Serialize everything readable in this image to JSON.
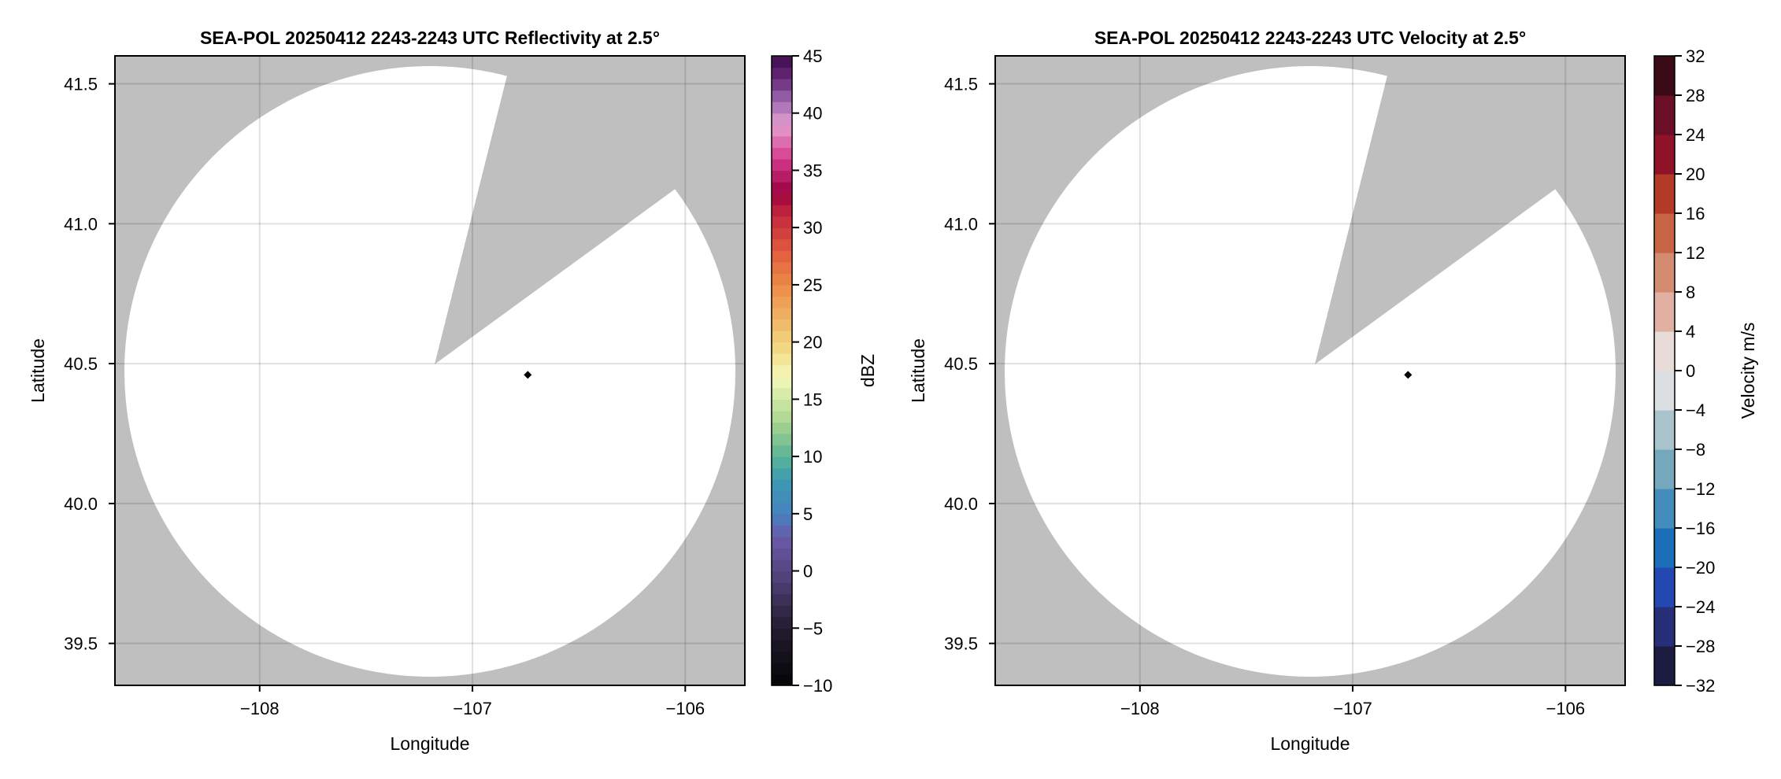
{
  "chart_data": [
    {
      "type": "heatmap",
      "title": "SEA-POL 20250412 2243-2243 UTC Reflectivity at 2.5°",
      "xlabel": "Longitude",
      "ylabel": "Latitude",
      "xlim": [
        -108.68,
        -105.72
      ],
      "ylim": [
        39.35,
        41.6
      ],
      "xticks": [
        "−108",
        "−107",
        "−106"
      ],
      "xtick_values": [
        -108,
        -107,
        -106
      ],
      "yticks": [
        "39.5",
        "40.0",
        "40.5",
        "41.0",
        "41.5"
      ],
      "ytick_values": [
        39.5,
        40.0,
        40.5,
        41.0,
        41.5
      ],
      "grid": true,
      "no_data_color": "#bfbfbf",
      "coverage_color": "#ffffff",
      "radar_marker": {
        "lon": -106.74,
        "lat": 40.46
      },
      "colorbar": {
        "label": "dBZ",
        "range": [
          -10,
          45
        ],
        "step": 1,
        "ticks": [
          "−10",
          "−5",
          "0",
          "5",
          "10",
          "15",
          "20",
          "25",
          "30",
          "35",
          "40",
          "45"
        ],
        "tick_values": [
          -10,
          -5,
          0,
          5,
          10,
          15,
          20,
          25,
          30,
          35,
          40,
          45
        ],
        "color_anchors": [
          [
            -10,
            "#050505"
          ],
          [
            -5,
            "#221c30"
          ],
          [
            0,
            "#574682"
          ],
          [
            3,
            "#6a5aa8"
          ],
          [
            5,
            "#4682c0"
          ],
          [
            8,
            "#3b9ab0"
          ],
          [
            10,
            "#5ab496"
          ],
          [
            13,
            "#a8d490"
          ],
          [
            17,
            "#f5f8b8"
          ],
          [
            20,
            "#f2d27a"
          ],
          [
            25,
            "#ec8a48"
          ],
          [
            28,
            "#e25a3e"
          ],
          [
            32,
            "#b8183c"
          ],
          [
            33,
            "#9a0040"
          ],
          [
            36,
            "#d43a8c"
          ],
          [
            39,
            "#e4a0d0"
          ],
          [
            41,
            "#9e6ab0"
          ],
          [
            43,
            "#6a2a7a"
          ],
          [
            45,
            "#3c0a4c"
          ]
        ]
      }
    },
    {
      "type": "heatmap",
      "title": "SEA-POL 20250412 2243-2243 UTC Velocity at 2.5°",
      "xlabel": "Longitude",
      "ylabel": "Latitude",
      "xlim": [
        -108.68,
        -105.72
      ],
      "ylim": [
        39.35,
        41.6
      ],
      "xticks": [
        "−108",
        "−107",
        "−106"
      ],
      "xtick_values": [
        -108,
        -107,
        -106
      ],
      "yticks": [
        "39.5",
        "40.0",
        "40.5",
        "41.0",
        "41.5"
      ],
      "ytick_values": [
        39.5,
        40.0,
        40.5,
        41.0,
        41.5
      ],
      "grid": true,
      "no_data_color": "#bfbfbf",
      "coverage_color": "#ffffff",
      "radar_marker": {
        "lon": -106.74,
        "lat": 40.46
      },
      "colorbar": {
        "label": "Velocity m/s",
        "range": [
          -32,
          32
        ],
        "step": 4,
        "ticks": [
          "−32",
          "−28",
          "−24",
          "−20",
          "−16",
          "−12",
          "−8",
          "−4",
          "0",
          "4",
          "8",
          "12",
          "16",
          "20",
          "24",
          "28",
          "32"
        ],
        "tick_values": [
          -32,
          -28,
          -24,
          -20,
          -16,
          -12,
          -8,
          -4,
          0,
          4,
          8,
          12,
          16,
          20,
          24,
          28,
          32
        ],
        "bin_colors": [
          "#1b1c40",
          "#262f78",
          "#2348b2",
          "#1a6fb8",
          "#428dbc",
          "#75a8bd",
          "#a9c3cc",
          "#dbdfe2",
          "#e8dcd8",
          "#e0b0a3",
          "#d38b71",
          "#c76446",
          "#b33a26",
          "#8f1229",
          "#6b0f26",
          "#3a0a16"
        ]
      }
    }
  ]
}
